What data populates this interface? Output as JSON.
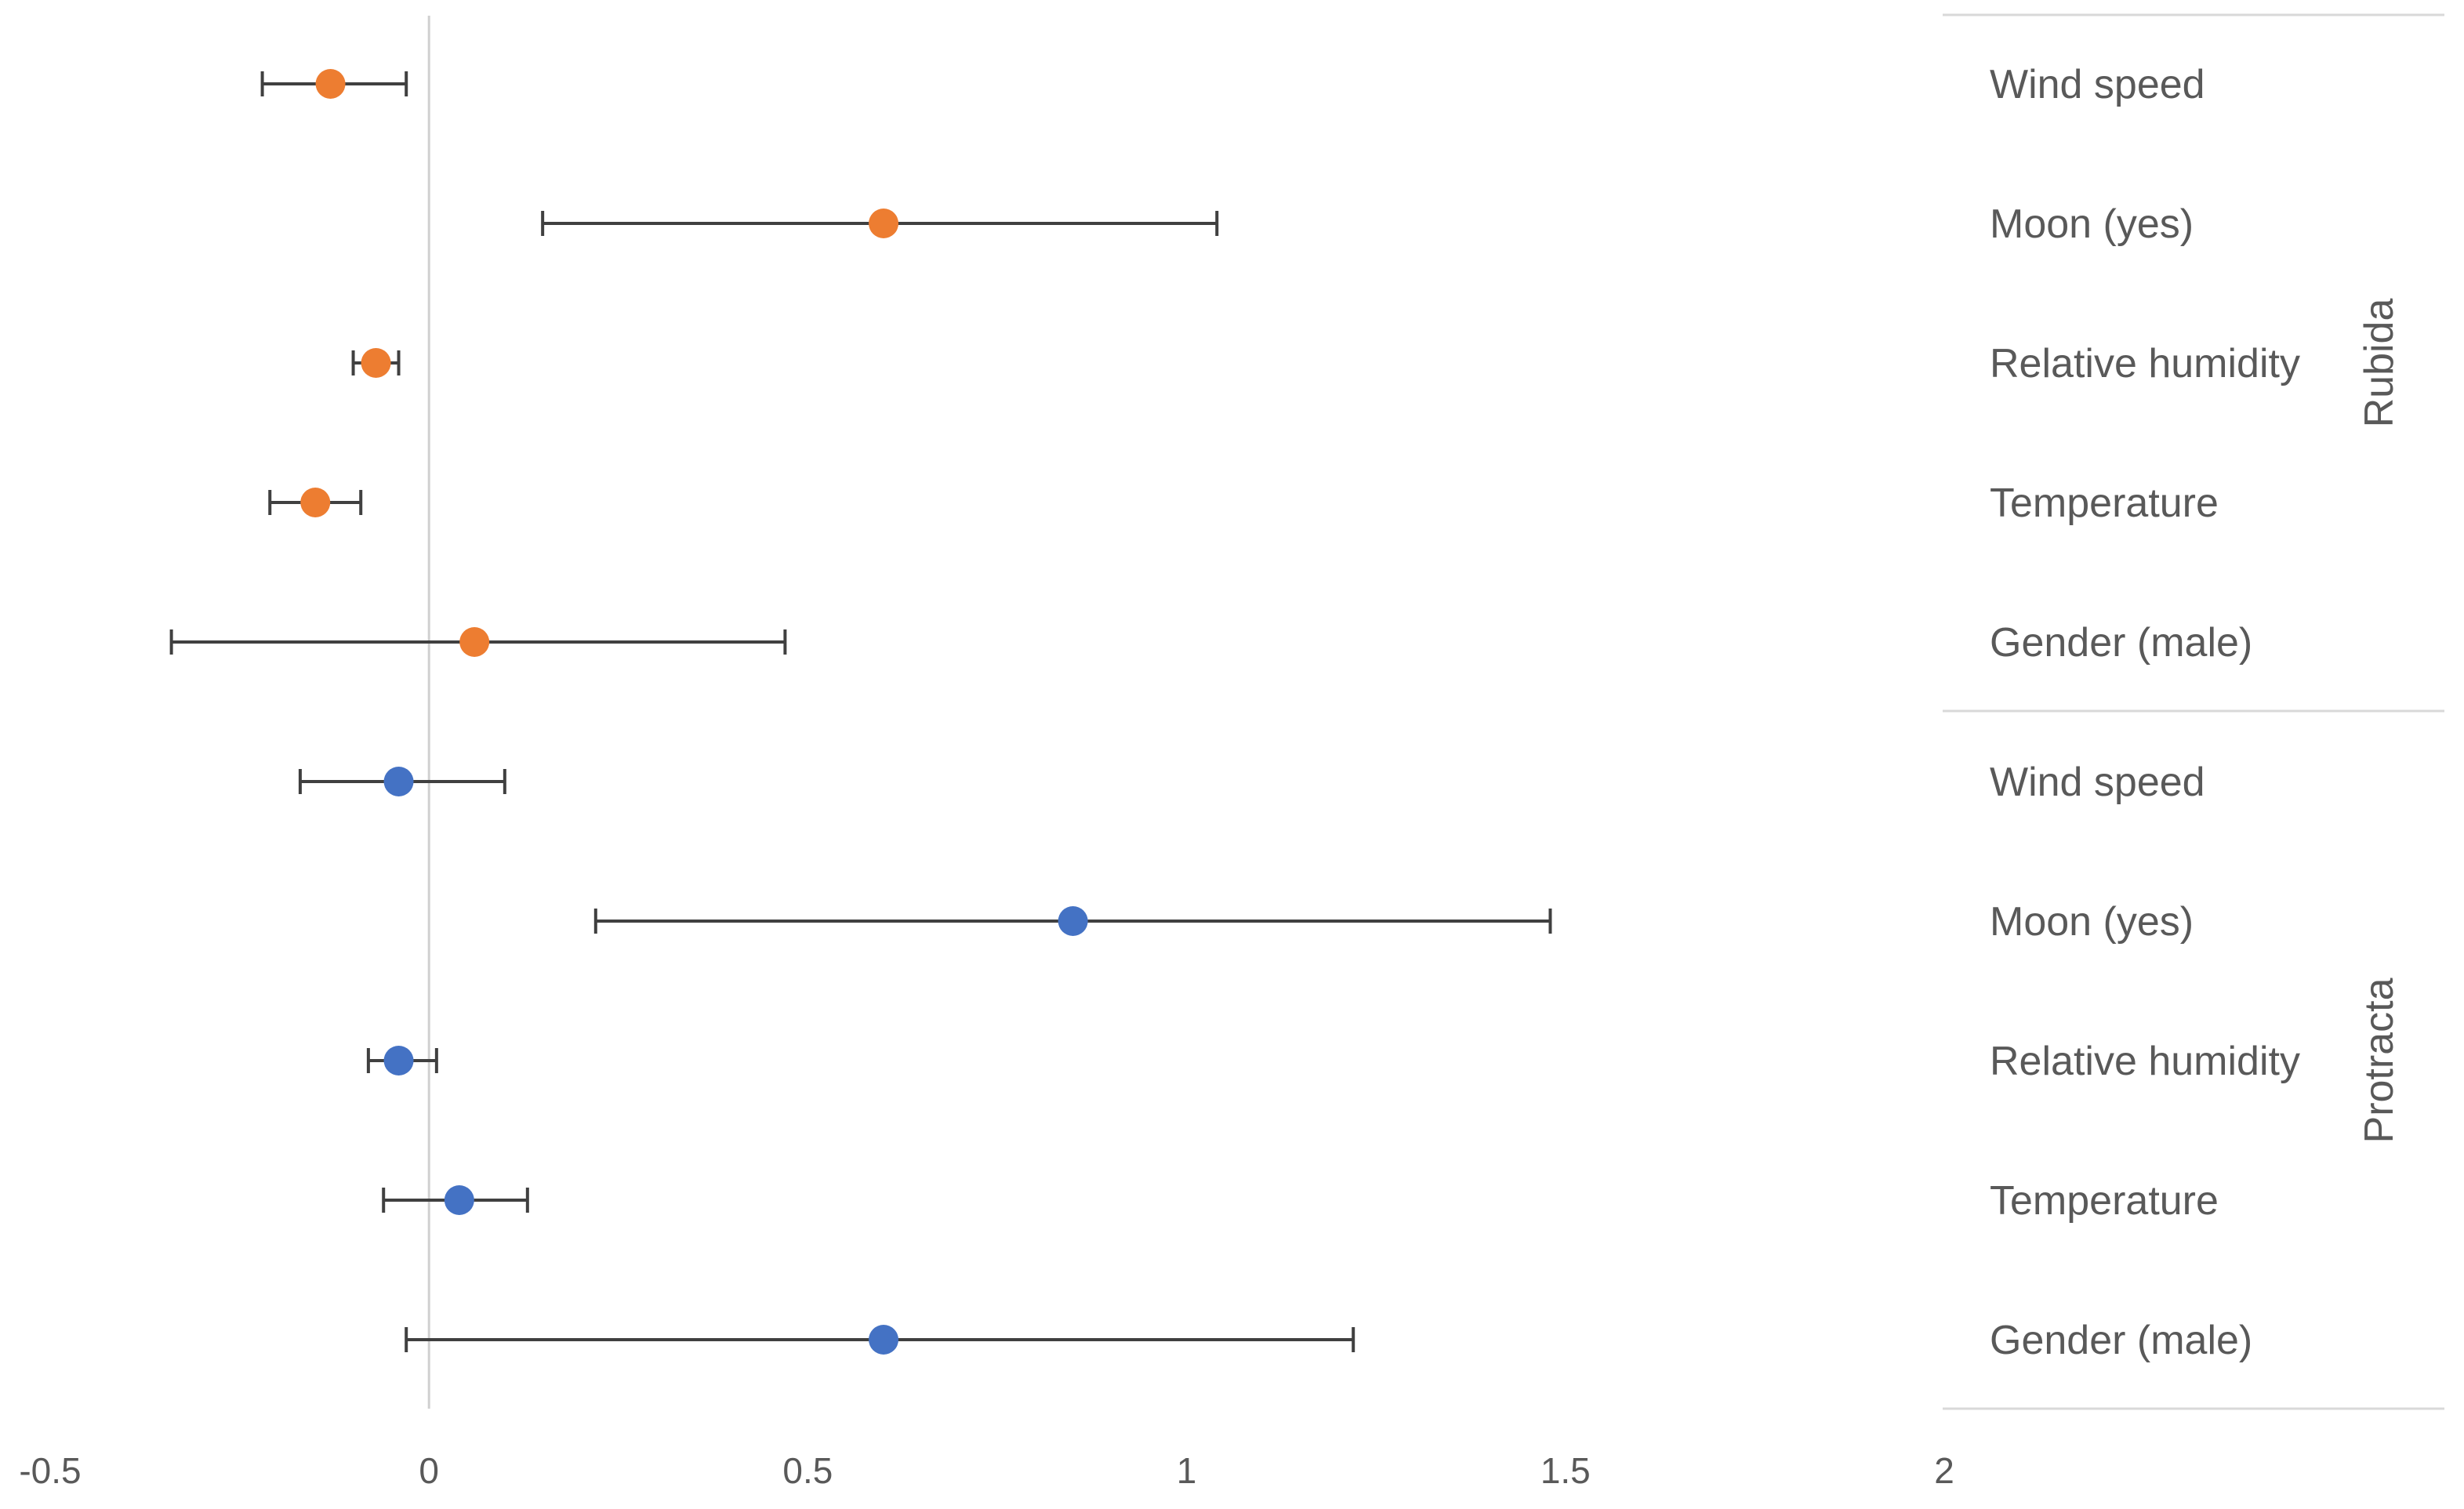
{
  "chart_data": {
    "type": "scatter",
    "title": "",
    "xlabel": "",
    "ylabel": "",
    "xlim": [
      -0.5,
      2
    ],
    "x_ticks": [
      "-0.5",
      "0",
      "0.5",
      "1",
      "1.5",
      "2"
    ],
    "x_tick_values": [
      -0.5,
      0,
      0.5,
      1,
      1.5,
      2
    ],
    "grid": false,
    "legend": "none",
    "groups": [
      {
        "name": "Rubida",
        "color": "#ED7D31",
        "points": [
          {
            "label": "Wind speed",
            "x": -0.13,
            "low": -0.22,
            "high": -0.03
          },
          {
            "label": "Moon (yes)",
            "x": 0.6,
            "low": 0.15,
            "high": 1.04
          },
          {
            "label": "Relative humidity",
            "x": -0.07,
            "low": -0.1,
            "high": -0.04
          },
          {
            "label": "Temperature",
            "x": -0.15,
            "low": -0.21,
            "high": -0.09
          },
          {
            "label": "Gender (male)",
            "x": 0.06,
            "low": -0.34,
            "high": 0.47
          }
        ]
      },
      {
        "name": "Protracta",
        "color": "#4472C4",
        "points": [
          {
            "label": "Wind speed",
            "x": -0.04,
            "low": -0.17,
            "high": 0.1
          },
          {
            "label": "Moon (yes)",
            "x": 0.85,
            "low": 0.22,
            "high": 1.48
          },
          {
            "label": "Relative humidity",
            "x": -0.04,
            "low": -0.08,
            "high": 0.01
          },
          {
            "label": "Temperature",
            "x": 0.04,
            "low": -0.06,
            "high": 0.13
          },
          {
            "label": "Gender (male)",
            "x": 0.6,
            "low": -0.03,
            "high": 1.22
          }
        ]
      }
    ]
  }
}
